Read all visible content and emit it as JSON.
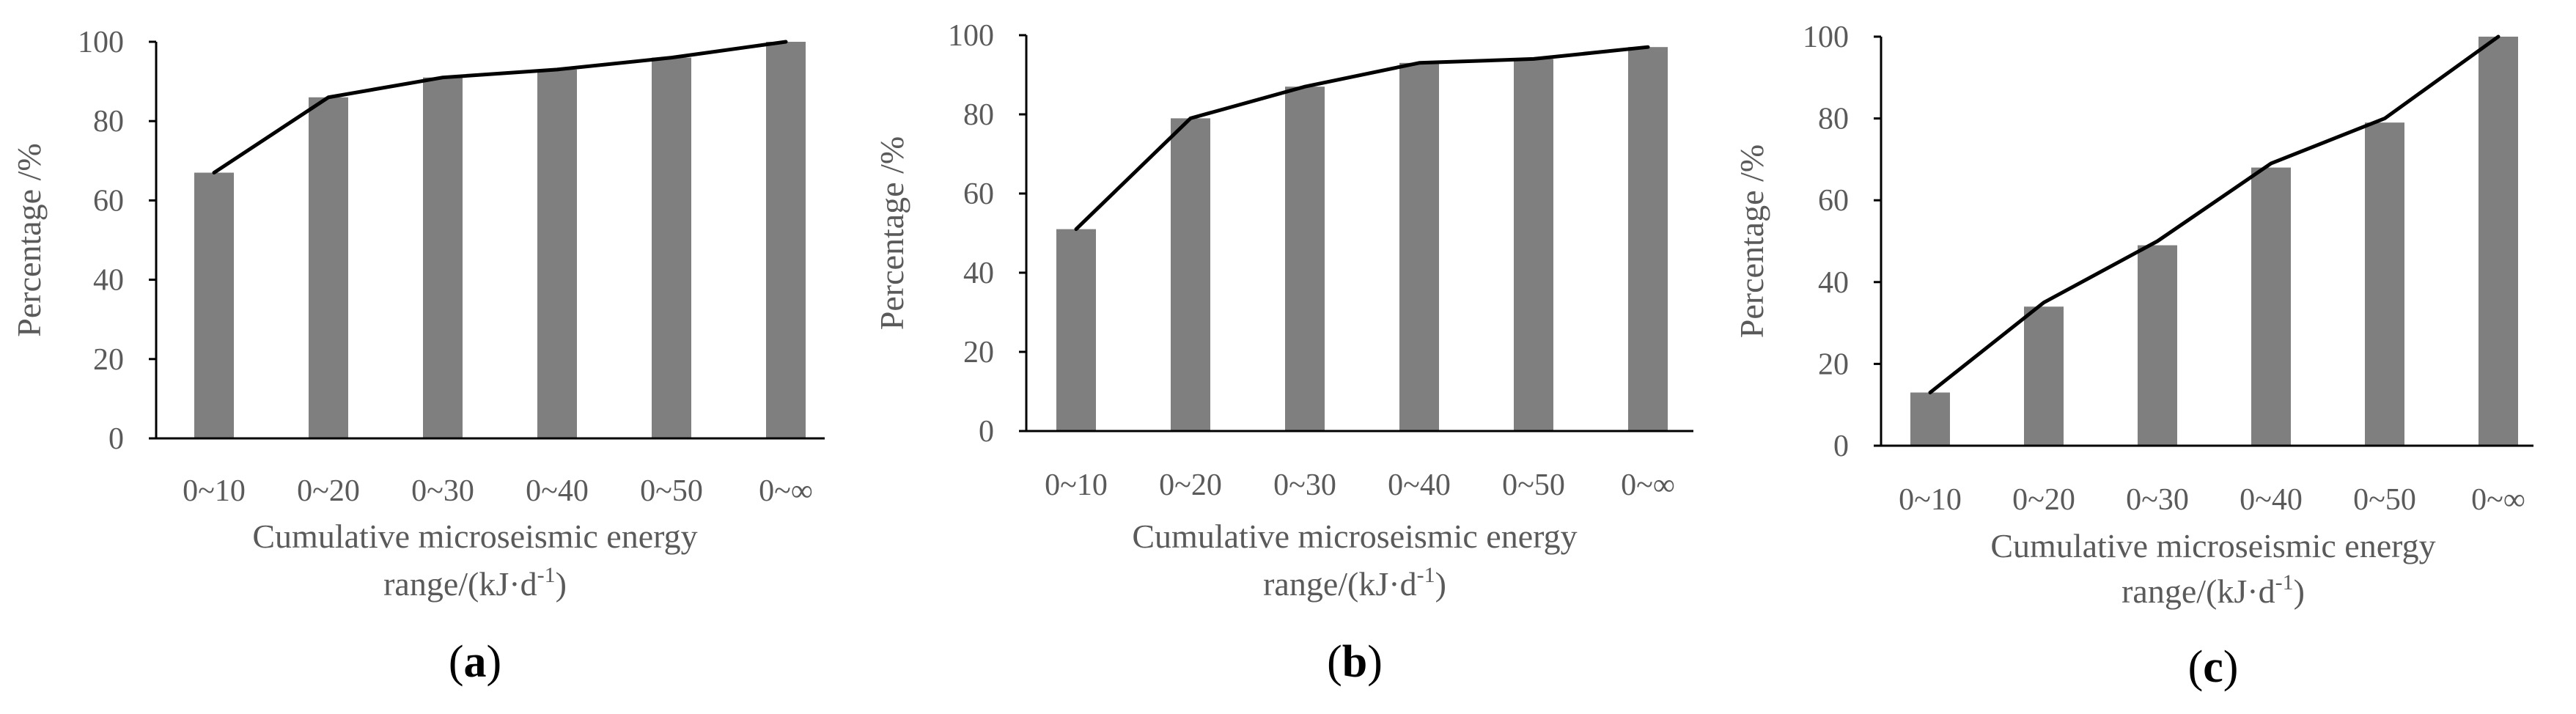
{
  "colors": {
    "bar": "#7f7f7f",
    "line": "#000000",
    "axis": "#000000",
    "text": "#5a5a5a"
  },
  "chart_data": [
    {
      "type": "bar+line",
      "panel_label": "a",
      "categories": [
        "0~10",
        "0~20",
        "0~30",
        "0~40",
        "0~50",
        "0~∞"
      ],
      "values": [
        67,
        86,
        91,
        93,
        96,
        100
      ],
      "line_values": [
        67,
        86,
        91,
        93,
        96,
        100
      ],
      "ylabel": "Percentage /%",
      "xlabel_line1": "Cumulative microseismic energy",
      "xlabel_line2_main": "range/(kJ·d",
      "xlabel_line2_sup": "-1",
      "xlabel_line2_end": ")",
      "ylim": [
        0,
        100
      ],
      "yticks": [
        "0",
        "20",
        "40",
        "60",
        "80",
        "100"
      ],
      "grid": false
    },
    {
      "type": "bar+line",
      "panel_label": "b",
      "categories": [
        "0~10",
        "0~20",
        "0~30",
        "0~40",
        "0~50",
        "0~∞"
      ],
      "values": [
        51,
        79,
        87,
        93,
        94,
        97
      ],
      "line_values": [
        51,
        79,
        87,
        93,
        94,
        97
      ],
      "ylabel": "Percentage /%",
      "xlabel_line1": "Cumulative microseismic energy",
      "xlabel_line2_main": "range/(kJ·d",
      "xlabel_line2_sup": "-1",
      "xlabel_line2_end": ")",
      "ylim": [
        0,
        100
      ],
      "yticks": [
        "0",
        "20",
        "40",
        "60",
        "80",
        "100"
      ],
      "grid": false
    },
    {
      "type": "bar+line",
      "panel_label": "c",
      "categories": [
        "0~10",
        "0~20",
        "0~30",
        "0~40",
        "0~50",
        "0~∞"
      ],
      "values": [
        13,
        34,
        49,
        68,
        79,
        100
      ],
      "line_values": [
        13,
        35,
        50,
        69,
        80,
        100
      ],
      "ylabel": "Percentage /%",
      "xlabel_line1": "Cumulative microseismic energy",
      "xlabel_line2_main": "range/(kJ·d",
      "xlabel_line2_sup": "-1",
      "xlabel_line2_end": ")",
      "ylim": [
        0,
        100
      ],
      "yticks": [
        "0",
        "20",
        "40",
        "60",
        "80",
        "100"
      ],
      "grid": false
    }
  ]
}
